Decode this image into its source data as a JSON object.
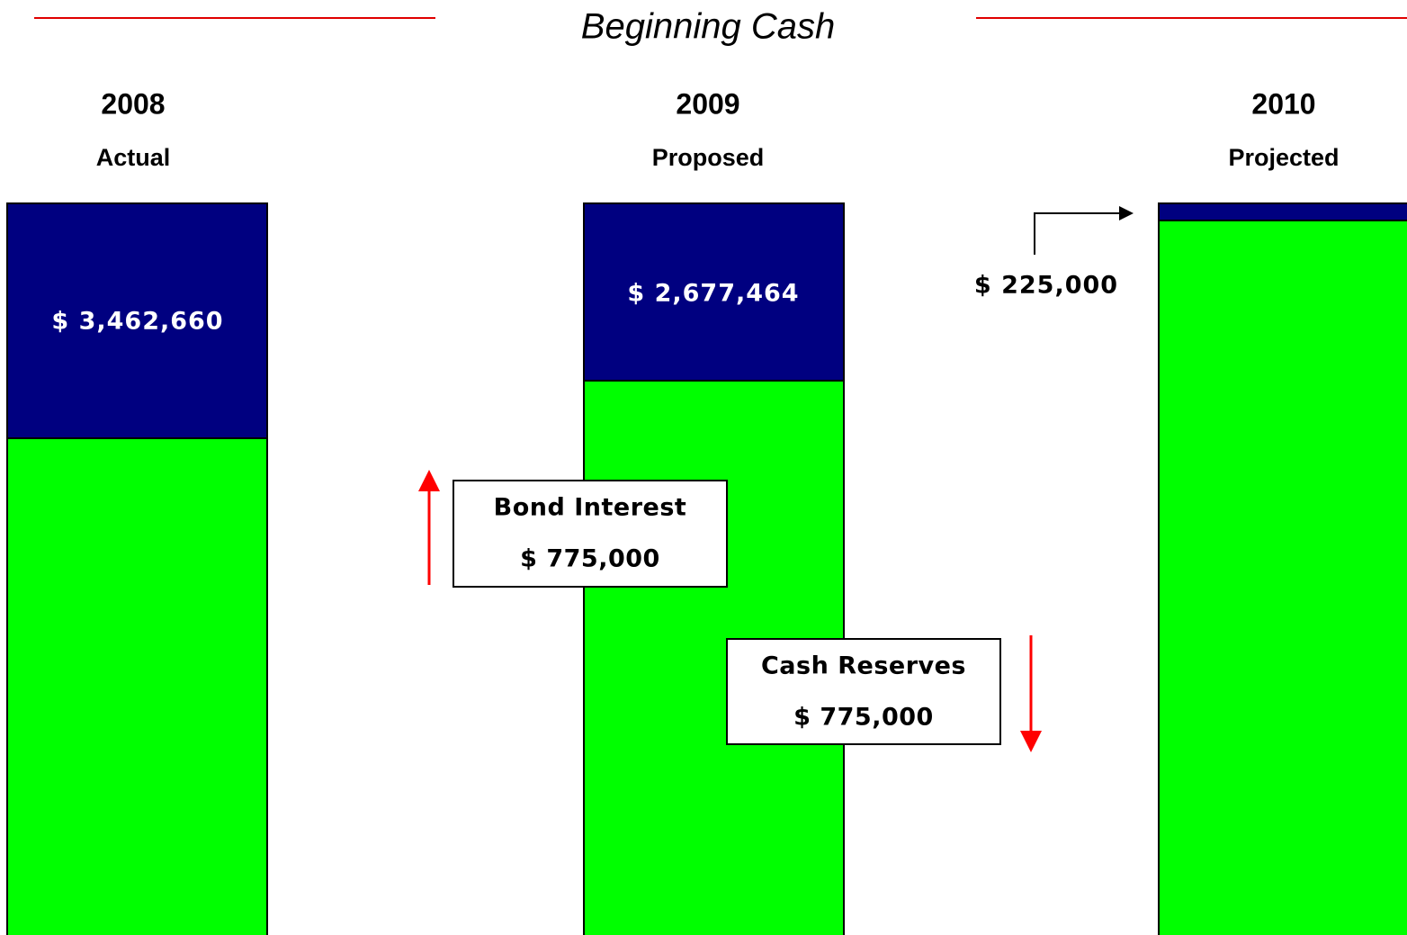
{
  "title": "Beginning Cash",
  "columns": [
    {
      "year": "2008",
      "status": "Actual",
      "amount": "$ 3,462,660"
    },
    {
      "year": "2009",
      "status": "Proposed",
      "amount": "$ 2,677,464"
    },
    {
      "year": "2010",
      "status": "Projected",
      "amount": "$ 225,000"
    }
  ],
  "callouts": [
    {
      "label": "Bond Interest",
      "amount": "$ 775,000"
    },
    {
      "label": "Cash Reserves",
      "amount": "$ 775,000"
    }
  ]
}
